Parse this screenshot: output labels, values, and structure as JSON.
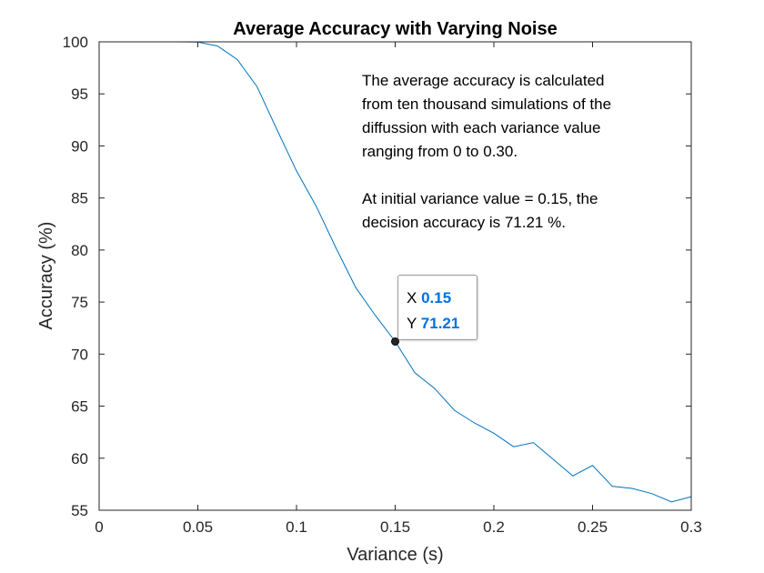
{
  "chart_data": {
    "type": "line",
    "title": "Average Accuracy with Varying Noise",
    "xlabel": "Variance (s)",
    "ylabel": "Accuracy (%)",
    "xlim": [
      0,
      0.3
    ],
    "ylim": [
      55,
      100
    ],
    "xticks": [
      0,
      0.05,
      0.1,
      0.15,
      0.2,
      0.25,
      0.3
    ],
    "xtick_labels": [
      "0",
      "0.05",
      "0.1",
      "0.15",
      "0.2",
      "0.25",
      "0.3"
    ],
    "yticks": [
      55,
      60,
      65,
      70,
      75,
      80,
      85,
      90,
      95,
      100
    ],
    "ytick_labels": [
      "55",
      "60",
      "65",
      "70",
      "75",
      "80",
      "85",
      "90",
      "95",
      "100"
    ],
    "grid": false,
    "line_color": "#0072BD",
    "series": [
      {
        "x": [
          0,
          0.01,
          0.02,
          0.03,
          0.04,
          0.05,
          0.06,
          0.07,
          0.08,
          0.09,
          0.1,
          0.11,
          0.12,
          0.13,
          0.14,
          0.15,
          0.16,
          0.17,
          0.18,
          0.19,
          0.2,
          0.21,
          0.22,
          0.23,
          0.24,
          0.25,
          0.26,
          0.27,
          0.28,
          0.29,
          0.3
        ],
        "y": [
          100,
          100,
          100,
          100,
          100,
          99.98,
          99.6,
          98.3,
          95.7,
          91.6,
          87.6,
          84.2,
          80.2,
          76.4,
          73.7,
          71.21,
          68.2,
          66.7,
          64.6,
          63.4,
          62.4,
          61.1,
          61.5,
          59.9,
          58.3,
          59.3,
          57.3,
          57.1,
          56.6,
          55.8,
          56.3
        ]
      }
    ],
    "annotation_lines": [
      "The average accuracy is calculated",
      "from ten thousand simulations of the",
      "diffussion with each variance value",
      "ranging from 0 to 0.30.",
      "At initial variance value = 0.15, the",
      "decision accuracy is  71.21 %."
    ],
    "datatip": {
      "x": 0.15,
      "y": 71.21,
      "x_label": "X",
      "y_label": "Y",
      "x_text": "0.15",
      "y_text": "71.21",
      "value_color": "#0072E0"
    }
  }
}
